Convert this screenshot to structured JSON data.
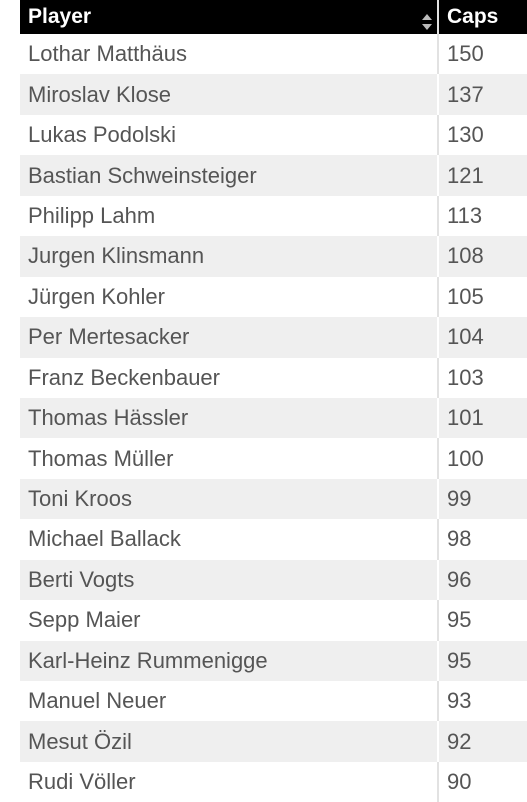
{
  "table": {
    "header": [
      "Player",
      "Caps"
    ],
    "rows": [
      [
        "Lothar Matthäus",
        150
      ],
      [
        "Miroslav Klose",
        137
      ],
      [
        "Lukas Podolski",
        130
      ],
      [
        "Bastian Schweinsteiger",
        121
      ],
      [
        "Philipp Lahm",
        113
      ],
      [
        "Jurgen Klinsmann",
        108
      ],
      [
        "Jürgen Kohler",
        105
      ],
      [
        "Per Mertesacker",
        104
      ],
      [
        "Franz Beckenbauer",
        103
      ],
      [
        "Thomas Hässler",
        101
      ],
      [
        "Thomas Müller",
        100
      ],
      [
        "Toni Kroos",
        99
      ],
      [
        "Michael Ballack",
        98
      ],
      [
        "Berti Vogts",
        96
      ],
      [
        "Sepp Maier",
        95
      ],
      [
        "Karl-Heinz Rummenigge",
        95
      ],
      [
        "Manuel Neuer",
        93
      ],
      [
        "Mesut Özil",
        92
      ],
      [
        "Rudi Völler",
        90
      ]
    ]
  }
}
